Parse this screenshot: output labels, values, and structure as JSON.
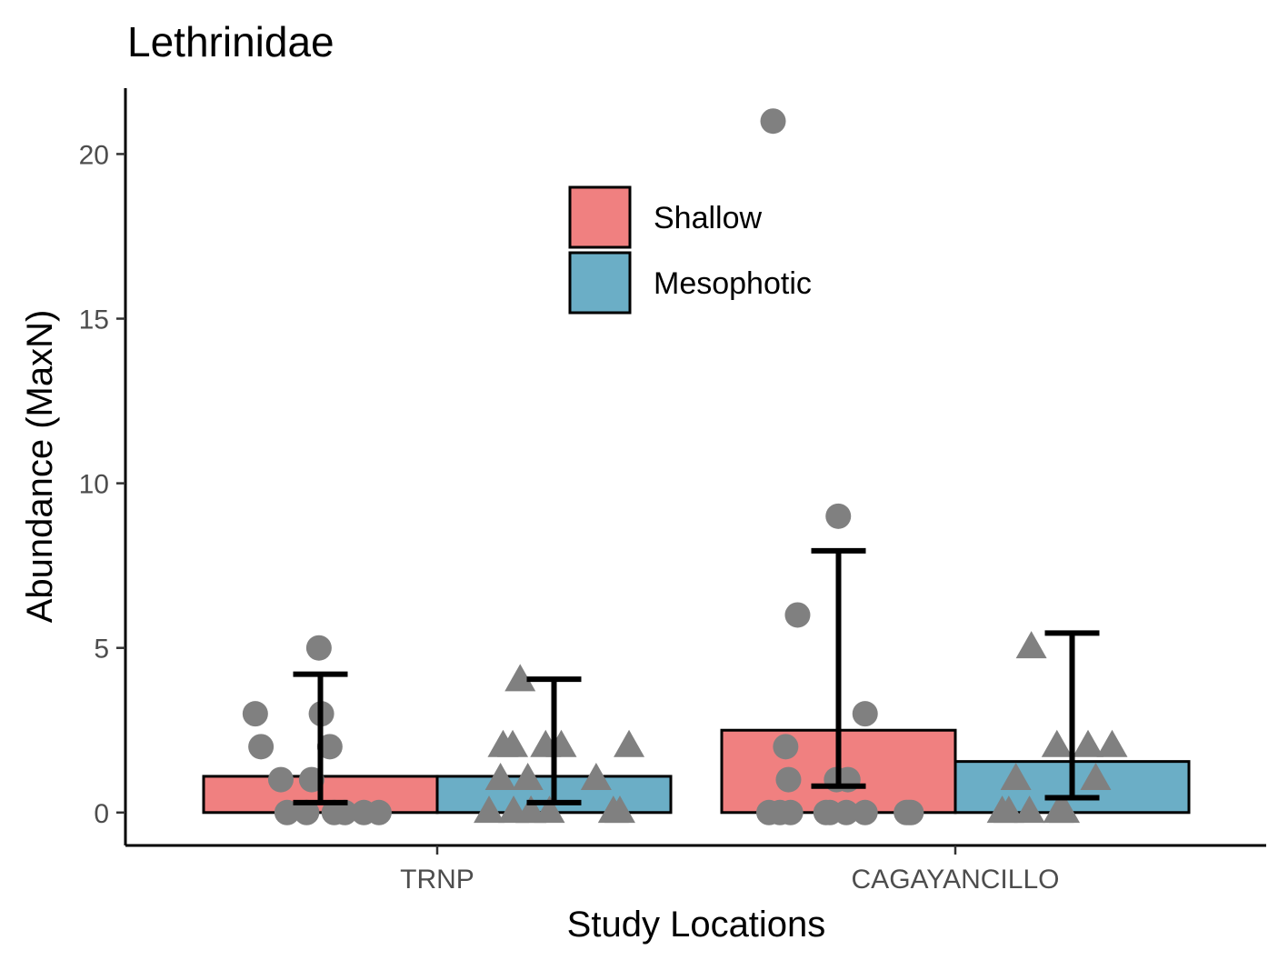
{
  "chart_data": {
    "type": "bar",
    "title": "Lethrinidae",
    "xlabel": "Study Locations",
    "ylabel": "Abundance (MaxN)",
    "categories": [
      "TRNP",
      "CAGAYANCILLO"
    ],
    "ylim": [
      -1,
      22
    ],
    "yticks": [
      0,
      5,
      10,
      15,
      20
    ],
    "grid": false,
    "legend_position": "top-center",
    "series": [
      {
        "name": "Shallow",
        "color": "#F08080",
        "values": [
          1.1,
          2.5
        ],
        "error_low": [
          0.3,
          0.8
        ],
        "error_high": [
          4.2,
          7.95
        ],
        "point_shape": "circle",
        "points": [
          [
            5,
            2,
            2,
            1,
            1,
            3,
            3,
            0,
            0,
            0,
            0,
            0,
            0
          ],
          [
            21,
            9,
            6,
            3,
            2,
            1,
            1,
            1,
            0,
            0,
            0,
            0,
            0,
            0,
            0,
            0,
            0,
            0
          ]
        ]
      },
      {
        "name": "Mesophotic",
        "color": "#6BAEC6",
        "values": [
          1.1,
          1.55
        ],
        "error_low": [
          0.3,
          0.45
        ],
        "error_high": [
          4.05,
          5.45
        ],
        "point_shape": "triangle",
        "points": [
          [
            4,
            2,
            2,
            2,
            2,
            2,
            1,
            1,
            1,
            0,
            0,
            0,
            0,
            0,
            0,
            0
          ],
          [
            5,
            2,
            2,
            2,
            1,
            1,
            0,
            0,
            0,
            0,
            0
          ]
        ]
      }
    ]
  }
}
